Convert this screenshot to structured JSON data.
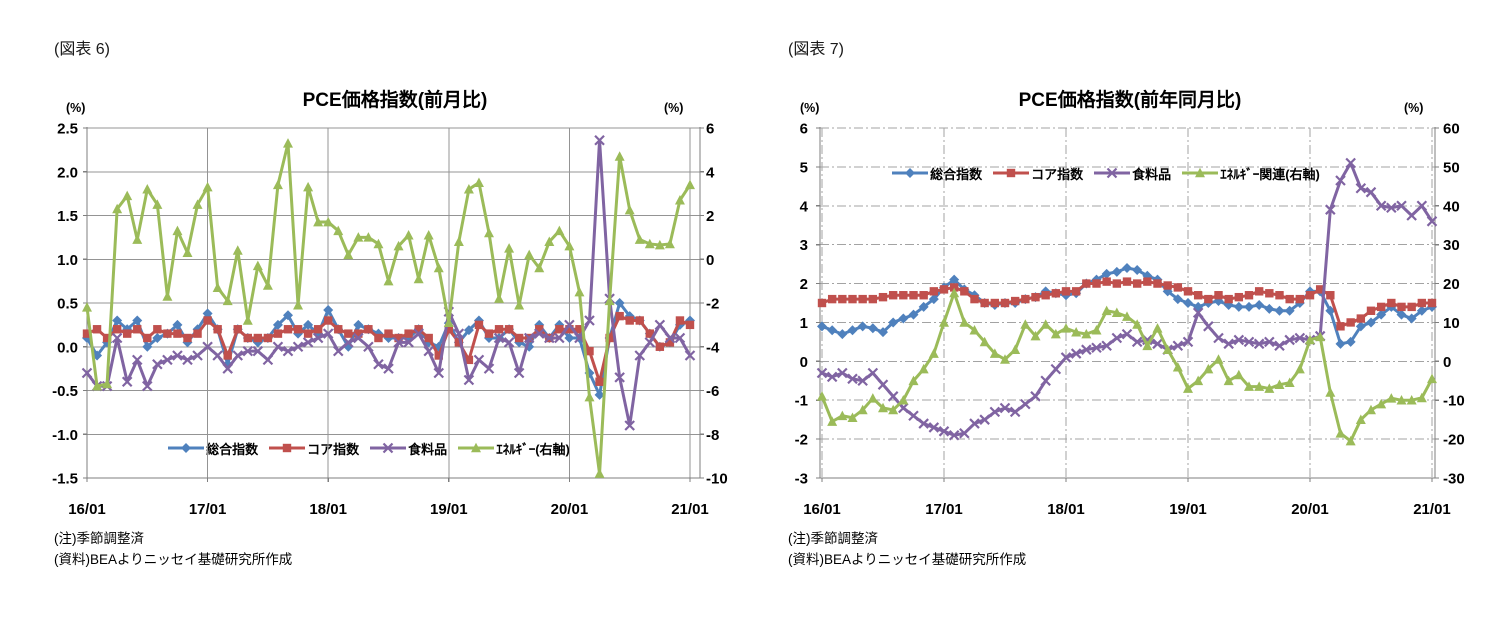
{
  "page": {
    "background": "#ffffff"
  },
  "chart_data": [
    {
      "type": "line",
      "figure_label": "(図表 6)",
      "title": "PCE価格指数(前月比)",
      "notes": [
        "(注)季節調整済",
        "(資料)BEAよりニッセイ基礎研究所作成"
      ],
      "left_axis": {
        "unit": "(%)",
        "min": -1.5,
        "max": 2.5,
        "tick_labels": [
          "2.5",
          "2.0",
          "1.5",
          "1.0",
          "0.5",
          "0.0",
          "-0.5",
          "-1.0",
          "-1.5"
        ]
      },
      "right_axis": {
        "unit": "(%)",
        "min": -10,
        "max": 6,
        "tick_labels": [
          "6",
          "4",
          "2",
          "0",
          "-2",
          "-4",
          "-6",
          "-8",
          "-10"
        ]
      },
      "x_tick_labels": [
        "16/01",
        "17/01",
        "18/01",
        "19/01",
        "20/01",
        "21/01"
      ],
      "x_label_every": 12,
      "n_points": 61,
      "gridline_style": "solid",
      "gridline_color": "#949494",
      "axis_color": "#7f7f7f",
      "legend_position": "bottom",
      "series": [
        {
          "name": "総合指数",
          "color": "#4F81BD",
          "marker": "diamond",
          "axis": "left",
          "values": [
            0.1,
            -0.1,
            0.05,
            0.3,
            0.2,
            0.3,
            0.0,
            0.1,
            0.15,
            0.25,
            0.05,
            0.2,
            0.38,
            0.2,
            -0.2,
            0.2,
            0.1,
            0.05,
            0.1,
            0.25,
            0.36,
            0.15,
            0.25,
            0.15,
            0.42,
            0.2,
            0.0,
            0.25,
            0.2,
            0.15,
            0.1,
            0.1,
            0.1,
            0.2,
            0.05,
            0.0,
            0.27,
            0.05,
            0.19,
            0.3,
            0.1,
            0.1,
            0.2,
            0.05,
            0.0,
            0.25,
            0.1,
            0.25,
            0.1,
            0.1,
            -0.3,
            -0.55,
            0.1,
            0.5,
            0.35,
            0.3,
            0.15,
            0.0,
            0.05,
            0.25,
            0.3
          ]
        },
        {
          "name": "コア指数",
          "color": "#C0504D",
          "marker": "square",
          "axis": "left",
          "values": [
            0.15,
            0.2,
            0.1,
            0.2,
            0.15,
            0.2,
            0.1,
            0.2,
            0.15,
            0.15,
            0.1,
            0.15,
            0.3,
            0.2,
            -0.1,
            0.2,
            0.1,
            0.1,
            0.1,
            0.15,
            0.2,
            0.2,
            0.15,
            0.2,
            0.3,
            0.2,
            0.15,
            0.15,
            0.2,
            0.1,
            0.15,
            0.1,
            0.15,
            0.2,
            0.1,
            -0.1,
            0.2,
            0.05,
            -0.15,
            0.25,
            0.15,
            0.2,
            0.2,
            0.1,
            0.1,
            0.2,
            0.1,
            0.2,
            0.2,
            0.2,
            -0.05,
            -0.4,
            0.1,
            0.35,
            0.3,
            0.3,
            0.15,
            0.0,
            0.05,
            0.3,
            0.25
          ]
        },
        {
          "name": "食料品",
          "color": "#8064A2",
          "marker": "x",
          "axis": "left",
          "values": [
            -0.3,
            -0.45,
            -0.45,
            0.1,
            -0.4,
            -0.15,
            -0.45,
            -0.2,
            -0.15,
            -0.1,
            -0.15,
            -0.1,
            0.0,
            -0.1,
            -0.25,
            -0.1,
            -0.05,
            -0.05,
            -0.15,
            0.0,
            -0.05,
            0.0,
            0.05,
            0.1,
            0.15,
            -0.05,
            0.05,
            0.1,
            0.0,
            -0.2,
            -0.25,
            0.05,
            0.05,
            0.15,
            -0.05,
            -0.3,
            0.4,
            0.15,
            -0.38,
            -0.15,
            -0.25,
            0.1,
            0.05,
            -0.3,
            0.1,
            0.15,
            0.1,
            0.1,
            0.25,
            0.1,
            0.3,
            2.36,
            0.55,
            -0.35,
            -0.9,
            -0.1,
            0.05,
            0.25,
            0.1,
            0.1,
            -0.1
          ]
        },
        {
          "name": "ｴﾈﾙｷﾞｰ(右軸)",
          "color": "#9BBB59",
          "marker": "triangle",
          "axis": "right",
          "values": [
            -2.2,
            -5.8,
            -5.7,
            2.3,
            2.9,
            0.9,
            3.2,
            2.5,
            -1.7,
            1.3,
            0.3,
            2.5,
            3.3,
            -1.3,
            -1.9,
            0.4,
            -2.8,
            -0.3,
            -1.2,
            3.4,
            5.3,
            -2.1,
            3.3,
            1.7,
            1.7,
            1.3,
            0.2,
            1.0,
            1.0,
            0.7,
            -1.0,
            0.6,
            1.1,
            -0.9,
            1.1,
            -0.4,
            -2.9,
            0.8,
            3.2,
            3.5,
            1.2,
            -1.8,
            0.5,
            -2.1,
            0.2,
            -0.4,
            0.8,
            1.3,
            0.6,
            -1.5,
            -6.3,
            -9.8,
            -1.9,
            4.7,
            2.25,
            0.9,
            0.7,
            0.65,
            0.7,
            2.7,
            3.4
          ]
        }
      ]
    },
    {
      "type": "line",
      "figure_label": "(図表 7)",
      "title": "PCE価格指数(前年同月比)",
      "notes": [
        "(注)季節調整済",
        "(資料)BEAよりニッセイ基礎研究所作成"
      ],
      "left_axis": {
        "unit": "(%)",
        "min": -3,
        "max": 6,
        "tick_labels": [
          "6",
          "5",
          "4",
          "3",
          "2",
          "1",
          "0",
          "-1",
          "-2",
          "-3"
        ]
      },
      "right_axis": {
        "unit": "(%)",
        "min": -30,
        "max": 60,
        "tick_labels": [
          "60",
          "50",
          "40",
          "30",
          "20",
          "10",
          "0",
          "-10",
          "-20",
          "-30"
        ]
      },
      "x_tick_labels": [
        "16/01",
        "17/01",
        "18/01",
        "19/01",
        "20/01",
        "21/01"
      ],
      "x_label_every": 12,
      "n_points": 61,
      "gridline_style": "dashdot",
      "gridline_color": "#a3a3a3",
      "axis_color": "#7f7f7f",
      "legend_position": "top",
      "series": [
        {
          "name": "総合指数",
          "color": "#4F81BD",
          "marker": "diamond",
          "axis": "left",
          "values": [
            0.9,
            0.8,
            0.7,
            0.8,
            0.9,
            0.85,
            0.75,
            1.0,
            1.1,
            1.2,
            1.4,
            1.6,
            1.9,
            2.1,
            1.85,
            1.7,
            1.5,
            1.45,
            1.5,
            1.5,
            1.6,
            1.65,
            1.8,
            1.75,
            1.7,
            1.75,
            2.0,
            2.1,
            2.25,
            2.3,
            2.4,
            2.35,
            2.2,
            2.1,
            1.8,
            1.6,
            1.5,
            1.4,
            1.5,
            1.55,
            1.45,
            1.4,
            1.4,
            1.45,
            1.35,
            1.3,
            1.3,
            1.5,
            1.8,
            1.8,
            1.3,
            0.45,
            0.5,
            0.9,
            1.0,
            1.2,
            1.4,
            1.2,
            1.1,
            1.3,
            1.4
          ]
        },
        {
          "name": "コア指数",
          "color": "#C0504D",
          "marker": "square",
          "axis": "left",
          "values": [
            1.5,
            1.6,
            1.6,
            1.6,
            1.6,
            1.6,
            1.65,
            1.7,
            1.7,
            1.7,
            1.7,
            1.8,
            1.85,
            1.9,
            1.8,
            1.6,
            1.5,
            1.5,
            1.5,
            1.55,
            1.6,
            1.65,
            1.7,
            1.75,
            1.8,
            1.8,
            2.0,
            2.0,
            2.05,
            2.0,
            2.05,
            2.0,
            2.05,
            2.0,
            1.95,
            1.9,
            1.8,
            1.7,
            1.6,
            1.7,
            1.6,
            1.65,
            1.7,
            1.8,
            1.75,
            1.7,
            1.6,
            1.6,
            1.7,
            1.85,
            1.7,
            0.9,
            1.0,
            1.1,
            1.3,
            1.4,
            1.5,
            1.4,
            1.4,
            1.5,
            1.5
          ]
        },
        {
          "name": "食料品",
          "color": "#8064A2",
          "marker": "x",
          "axis": "left",
          "values": [
            -0.3,
            -0.4,
            -0.3,
            -0.45,
            -0.5,
            -0.3,
            -0.6,
            -0.9,
            -1.2,
            -1.4,
            -1.6,
            -1.7,
            -1.8,
            -1.9,
            -1.85,
            -1.6,
            -1.5,
            -1.3,
            -1.2,
            -1.3,
            -1.1,
            -0.9,
            -0.5,
            -0.2,
            0.1,
            0.2,
            0.3,
            0.35,
            0.4,
            0.6,
            0.7,
            0.5,
            0.55,
            0.45,
            0.3,
            0.4,
            0.5,
            1.25,
            0.9,
            0.6,
            0.45,
            0.55,
            0.5,
            0.45,
            0.5,
            0.4,
            0.55,
            0.6,
            0.55,
            0.65,
            3.9,
            4.65,
            5.1,
            4.45,
            4.35,
            4.0,
            3.95,
            4.0,
            3.75,
            4.0,
            3.6
          ]
        },
        {
          "name": "ｴﾈﾙｷﾞｰ関連(右軸)",
          "color": "#9BBB59",
          "marker": "triangle",
          "axis": "right",
          "values": [
            -9,
            -15.5,
            -14,
            -14.5,
            -12.5,
            -9.5,
            -12,
            -12.5,
            -10,
            -5,
            -2,
            2,
            10,
            17.6,
            10,
            8,
            5,
            2,
            0.5,
            3,
            9.5,
            6.5,
            9.5,
            7,
            8.5,
            7.5,
            7,
            8,
            13,
            12.5,
            11.5,
            9.5,
            4,
            8.5,
            3,
            -1.5,
            -7,
            -5,
            -2,
            0.5,
            -5,
            -3.5,
            -6.5,
            -6.5,
            -7,
            -6,
            -5.5,
            -2,
            5.5,
            6.3,
            -8,
            -18.5,
            -20.5,
            -15,
            -12.5,
            -11,
            -9.5,
            -10,
            -10,
            -9.4,
            -4.5
          ]
        }
      ]
    }
  ]
}
